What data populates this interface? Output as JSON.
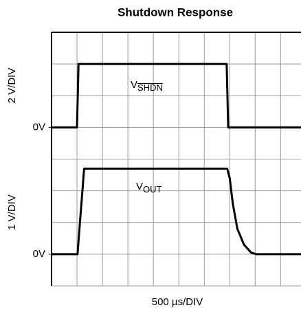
{
  "chart_data": [
    {
      "type": "line",
      "title": "Shutdown Response",
      "ylabel": "2 V/DIV",
      "xlim": [
        0,
        4900
      ],
      "ylim": [
        -2,
        6
      ],
      "xgrid": [
        0,
        500,
        1000,
        1500,
        2000,
        2500,
        3000,
        3500,
        4000,
        4500
      ],
      "ygrid": [
        -2,
        0,
        2,
        4,
        6
      ],
      "yticks": [
        {
          "value": 0,
          "label": "0V"
        }
      ],
      "series": [
        {
          "name": "V",
          "subscript": "SHDN",
          "color": "#000000",
          "x": [
            0,
            500,
            530,
            3440,
            3470,
            4900
          ],
          "values": [
            0,
            0,
            4,
            4,
            0,
            0
          ]
        }
      ]
    },
    {
      "type": "line",
      "xlabel": "500 µs/DIV",
      "ylabel": "1 V/DIV",
      "xlim": [
        0,
        4900
      ],
      "ylim": [
        -1,
        3
      ],
      "xgrid": [
        0,
        500,
        1000,
        1500,
        2000,
        2500,
        3000,
        3500,
        4000,
        4500
      ],
      "ygrid": [
        -1,
        0,
        1,
        2,
        3
      ],
      "yticks": [
        {
          "value": 0,
          "label": "0V"
        }
      ],
      "series": [
        {
          "name": "V",
          "subscript": "OUT",
          "color": "#000000",
          "x": [
            0,
            510,
            640,
            3450,
            3500,
            3560,
            3650,
            3780,
            3920,
            4020,
            4900
          ],
          "values": [
            0,
            0,
            2.7,
            2.7,
            2.4,
            1.6,
            0.8,
            0.3,
            0.05,
            0,
            0
          ]
        }
      ]
    }
  ]
}
